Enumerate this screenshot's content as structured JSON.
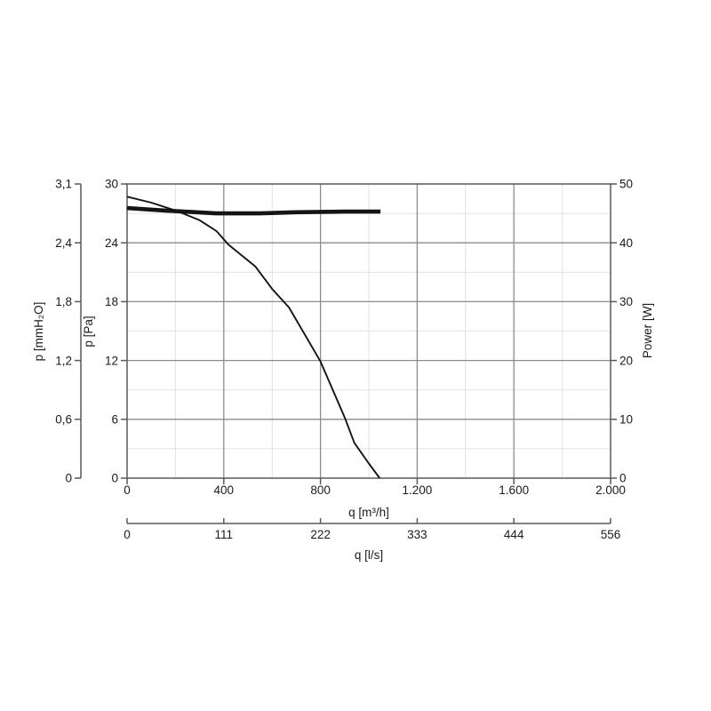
{
  "page": {
    "background": "#ffffff"
  },
  "chart_data": {
    "type": "line",
    "title": "",
    "description": "Fan performance diagram: pressure curve and power curve vs air flow",
    "grid": true,
    "legend": "none",
    "axes": {
      "x_flow_m3h": {
        "label": "q [m³/h]",
        "range": [
          0,
          2000
        ],
        "major_ticks": [
          0,
          400,
          800,
          1200,
          1600,
          2000
        ],
        "tick_labels": [
          "0",
          "400",
          "800",
          "1.200",
          "1.600",
          "2.000"
        ],
        "minor_step": 200
      },
      "x_flow_ls": {
        "label": "q [l/s]",
        "tick_labels": [
          "0",
          "111",
          "222",
          "333",
          "444",
          "556"
        ]
      },
      "y_pressure_pa": {
        "label": "p [Pa]",
        "range": [
          0,
          30
        ],
        "major_ticks": [
          0,
          6,
          12,
          18,
          24,
          30
        ],
        "tick_labels": [
          "0",
          "6",
          "12",
          "18",
          "24",
          "30"
        ],
        "minor_step": 3
      },
      "y_pressure_mmh2o": {
        "label": "p [mmH₂O]",
        "tick_labels": [
          "0",
          "0,6",
          "1,2",
          "1,8",
          "2,4",
          "3,1"
        ]
      },
      "y_power_w": {
        "label": "Power [W]",
        "range": [
          0,
          50
        ],
        "major_ticks": [
          0,
          10,
          20,
          30,
          40,
          50
        ],
        "tick_labels": [
          "0",
          "10",
          "20",
          "30",
          "40",
          "50"
        ]
      }
    },
    "series": [
      {
        "name": "pressure-curve",
        "y_axis": "y_pressure_pa",
        "stroke_width": 1.9,
        "points": [
          [
            0,
            28.7
          ],
          [
            100,
            28.1
          ],
          [
            200,
            27.3
          ],
          [
            300,
            26.3
          ],
          [
            370,
            25.2
          ],
          [
            420,
            23.8
          ],
          [
            530,
            21.6
          ],
          [
            600,
            19.3
          ],
          [
            670,
            17.4
          ],
          [
            800,
            11.9
          ],
          [
            900,
            6.2
          ],
          [
            940,
            3.6
          ],
          [
            1000,
            1.5
          ],
          [
            1045,
            0
          ]
        ]
      },
      {
        "name": "power-curve",
        "y_axis": "y_power_w",
        "stroke_width": 4.6,
        "points": [
          [
            0,
            45.9
          ],
          [
            150,
            45.5
          ],
          [
            370,
            45.0
          ],
          [
            550,
            45.0
          ],
          [
            700,
            45.2
          ],
          [
            900,
            45.3
          ],
          [
            1048,
            45.3
          ]
        ]
      }
    ],
    "colors": {
      "curve": "#141414",
      "major_grid": "#8c8c8c",
      "minor_grid": "#e2e2e2",
      "axis": "#595959",
      "text": "#1a1a1a"
    }
  }
}
